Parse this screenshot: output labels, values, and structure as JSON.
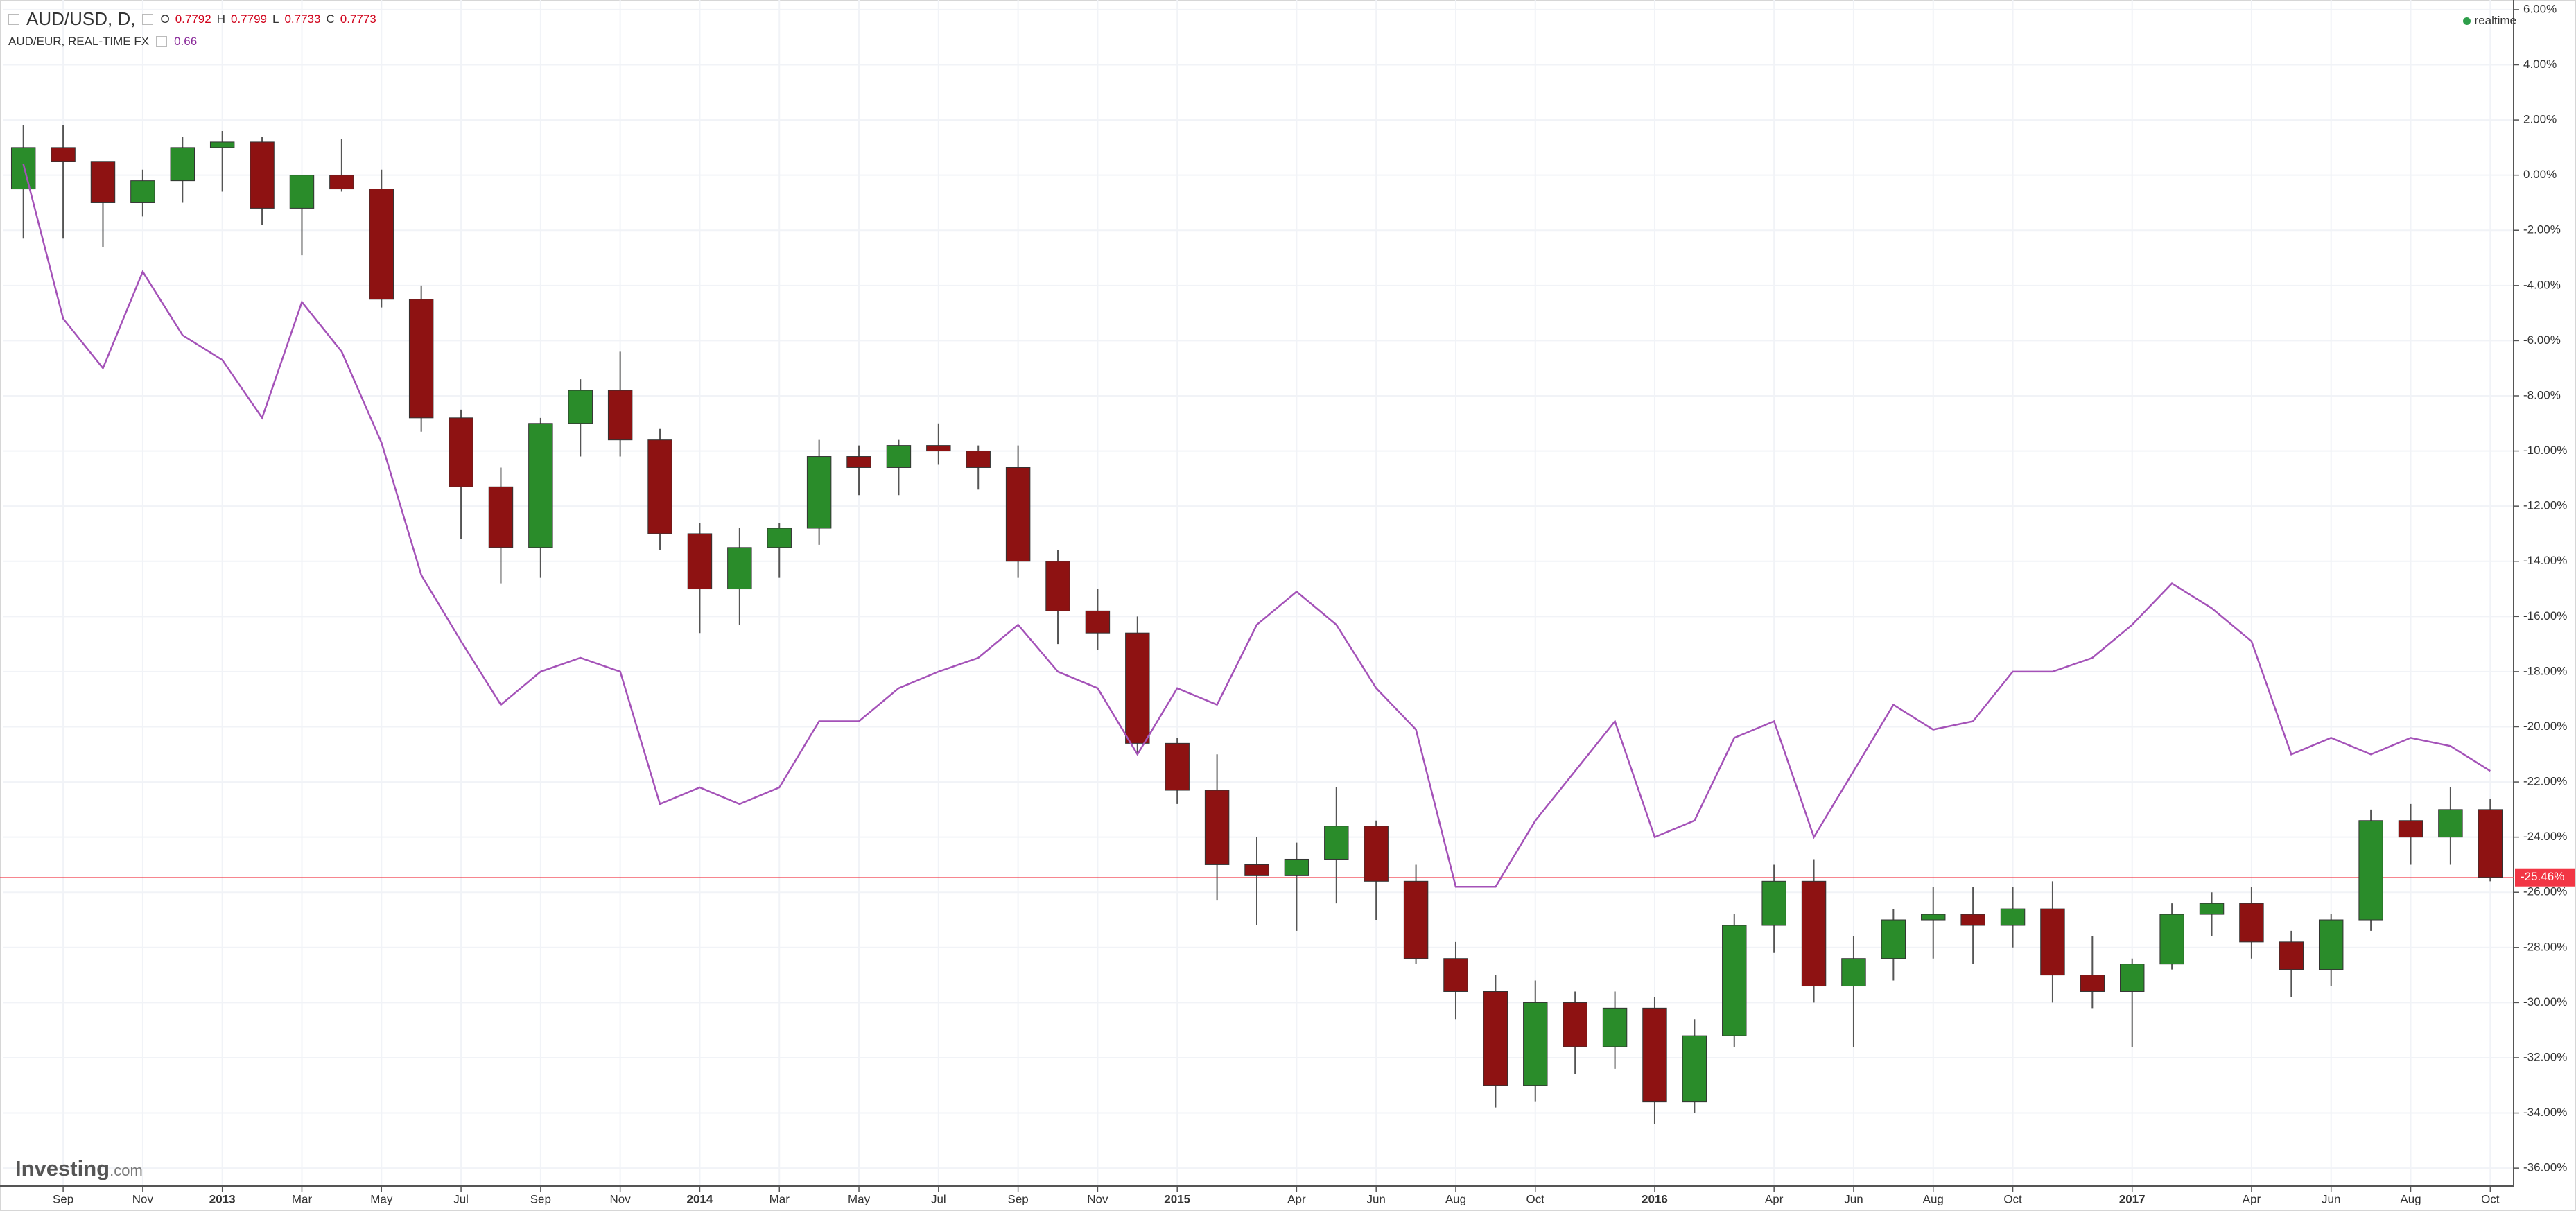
{
  "chart_data": {
    "type": "candlestick",
    "categories": [
      null,
      "Sep",
      null,
      "Nov",
      null,
      "2013",
      null,
      "Mar",
      null,
      "May",
      null,
      "Jul",
      null,
      "Sep",
      null,
      "Nov",
      null,
      "2014",
      null,
      "Mar",
      null,
      "May",
      null,
      "Jul",
      null,
      "Sep",
      null,
      "Nov",
      null,
      "2015",
      null,
      null,
      "Apr",
      null,
      "Jun",
      null,
      "Aug",
      null,
      "Oct",
      null,
      null,
      "2016",
      null,
      null,
      "Apr",
      null,
      "Jun",
      null,
      "Aug",
      null,
      "Oct",
      null,
      null,
      "2017",
      null,
      null,
      "Apr",
      null,
      "Jun",
      null,
      "Aug",
      null,
      "Oct"
    ],
    "series": [
      {
        "name": "AUD/USD, D,",
        "up_color": "#2a8c2a",
        "down_color": "#8e1212",
        "wick_color": "#555555",
        "open": [
          -0.5,
          1.0,
          0.5,
          -1.0,
          -0.2,
          1.0,
          1.2,
          -1.2,
          0.0,
          -0.5,
          -4.5,
          -8.8,
          -11.3,
          -13.5,
          -9.0,
          -7.8,
          -9.6,
          -13.0,
          -15.0,
          -13.5,
          -12.8,
          -10.2,
          -10.6,
          -9.8,
          -10.0,
          -10.6,
          -14.0,
          -15.8,
          -16.6,
          -20.6,
          -22.3,
          -25.0,
          -25.4,
          -24.8,
          -23.6,
          -25.6,
          -28.4,
          -29.6,
          -33.0,
          -30.0,
          -31.6,
          -30.2,
          -33.6,
          -31.2,
          -27.2,
          -25.6,
          -29.4,
          -28.4,
          -27.0,
          -26.8,
          -27.2,
          -26.6,
          -29.0,
          -29.6,
          -28.6,
          -26.8,
          -26.4,
          -27.8,
          -28.8,
          -27.0,
          -23.4,
          -24.0,
          -23.0
        ],
        "high": [
          1.8,
          1.8,
          0.5,
          0.2,
          1.4,
          1.6,
          1.4,
          0.0,
          1.3,
          0.2,
          -4.0,
          -8.5,
          -10.6,
          -8.8,
          -7.4,
          -6.4,
          -9.2,
          -12.6,
          -12.8,
          -12.6,
          -9.6,
          -9.8,
          -9.6,
          -9.0,
          -9.8,
          -9.8,
          -13.6,
          -15.0,
          -16.0,
          -20.4,
          -21.0,
          -24.0,
          -24.2,
          -22.2,
          -23.4,
          -25.0,
          -27.8,
          -29.0,
          -29.2,
          -29.6,
          -29.6,
          -29.8,
          -30.6,
          -26.8,
          -25.0,
          -24.8,
          -27.6,
          -26.6,
          -25.8,
          -25.8,
          -25.8,
          -25.6,
          -27.6,
          -28.4,
          -26.4,
          -26.0,
          -25.8,
          -27.4,
          -26.8,
          -23.0,
          -22.8,
          -22.2,
          -22.6
        ],
        "low": [
          -2.3,
          -2.3,
          -2.6,
          -1.5,
          -1.0,
          -0.6,
          -1.8,
          -2.9,
          -0.6,
          -4.8,
          -9.3,
          -13.2,
          -14.8,
          -14.6,
          -10.2,
          -10.2,
          -13.6,
          -16.6,
          -16.3,
          -14.6,
          -13.4,
          -11.6,
          -11.6,
          -10.5,
          -11.4,
          -14.6,
          -17.0,
          -17.2,
          -21.0,
          -22.8,
          -26.3,
          -27.2,
          -27.4,
          -26.4,
          -27.0,
          -28.6,
          -30.6,
          -33.8,
          -33.6,
          -32.6,
          -32.4,
          -34.4,
          -34.0,
          -31.6,
          -28.2,
          -30.0,
          -31.6,
          -29.2,
          -28.4,
          -28.6,
          -28.0,
          -30.0,
          -30.2,
          -31.6,
          -28.8,
          -27.6,
          -28.4,
          -29.8,
          -29.4,
          -27.4,
          -25.0,
          -25.0,
          -25.6
        ],
        "close": [
          1.0,
          0.5,
          -1.0,
          -0.2,
          1.0,
          1.2,
          -1.2,
          0.0,
          -0.5,
          -4.5,
          -8.8,
          -11.3,
          -13.5,
          -9.0,
          -7.8,
          -9.6,
          -13.0,
          -15.0,
          -13.5,
          -12.8,
          -10.2,
          -10.6,
          -9.8,
          -10.0,
          -10.6,
          -14.0,
          -15.8,
          -16.6,
          -20.6,
          -22.3,
          -25.0,
          -25.4,
          -24.8,
          -23.6,
          -25.6,
          -28.4,
          -29.6,
          -33.0,
          -30.0,
          -31.6,
          -30.2,
          -33.6,
          -31.2,
          -27.2,
          -25.6,
          -29.4,
          -28.4,
          -27.0,
          -26.8,
          -27.2,
          -26.6,
          -29.0,
          -29.6,
          -28.6,
          -26.8,
          -26.4,
          -27.8,
          -28.8,
          -27.0,
          -23.4,
          -24.0,
          -23.0,
          -25.46
        ]
      },
      {
        "name": "AUD/EUR, REAL-TIME FX",
        "color": "#a452b8",
        "last": 0.66,
        "values": [
          0.4,
          -5.2,
          -7.0,
          -3.5,
          -5.8,
          -6.7,
          -8.8,
          -4.6,
          -6.4,
          -9.7,
          -14.5,
          -16.9,
          -19.2,
          -18.0,
          -17.5,
          -18.0,
          -22.8,
          -22.2,
          -22.8,
          -22.2,
          -19.8,
          -19.8,
          -18.6,
          -18.0,
          -17.5,
          -16.3,
          -18.0,
          -18.6,
          -21.0,
          -18.6,
          -19.2,
          -16.3,
          -15.1,
          -16.3,
          -18.6,
          -20.1,
          -25.8,
          -25.8,
          -23.4,
          -21.6,
          -19.8,
          -24.0,
          -23.4,
          -20.4,
          -19.8,
          -24.0,
          -21.6,
          -19.2,
          -20.1,
          -19.8,
          -18.0,
          -18.0,
          -17.5,
          -16.3,
          -14.8,
          -15.7,
          -16.9,
          -21.0,
          -20.4,
          -21.0,
          -20.4,
          -20.7,
          -21.6
        ]
      }
    ],
    "ohlc": [
      {
        "label": "O",
        "value": 0.7792
      },
      {
        "label": "H",
        "value": 0.7799
      },
      {
        "label": "L",
        "value": 0.7733
      },
      {
        "label": "C",
        "value": 0.7773
      }
    ],
    "current": {
      "value": -25.46,
      "label": "-25.46%",
      "color": "#f23645"
    },
    "status": "realtime",
    "watermark": [
      "Investing",
      ".com"
    ],
    "ylim": [
      -36.65,
      6.35
    ],
    "yticks": [
      {
        "value": 6,
        "label": "6.00%"
      },
      {
        "value": 4,
        "label": "4.00%"
      },
      {
        "value": 2,
        "label": "2.00%"
      },
      {
        "value": 0,
        "label": "0.00%"
      },
      {
        "value": -2,
        "label": "-2.00%"
      },
      {
        "value": -4,
        "label": "-4.00%"
      },
      {
        "value": -6,
        "label": "-6.00%"
      },
      {
        "value": -8,
        "label": "-8.00%"
      },
      {
        "value": -10,
        "label": "-10.00%"
      },
      {
        "value": -12,
        "label": "-12.00%"
      },
      {
        "value": -14,
        "label": "-14.00%"
      },
      {
        "value": -16,
        "label": "-16.00%"
      },
      {
        "value": -18,
        "label": "-18.00%"
      },
      {
        "value": -20,
        "label": "-20.00%"
      },
      {
        "value": -22,
        "label": "-22.00%"
      },
      {
        "value": -24,
        "label": "-24.00%"
      },
      {
        "value": -26,
        "label": "-26.00%"
      },
      {
        "value": -28,
        "label": "-28.00%"
      },
      {
        "value": -30,
        "label": "-30.00%"
      },
      {
        "value": -32,
        "label": "-32.00%"
      },
      {
        "value": -34,
        "label": "-34.00%"
      },
      {
        "value": -36,
        "label": "-36.00%"
      }
    ],
    "grid": true
  }
}
